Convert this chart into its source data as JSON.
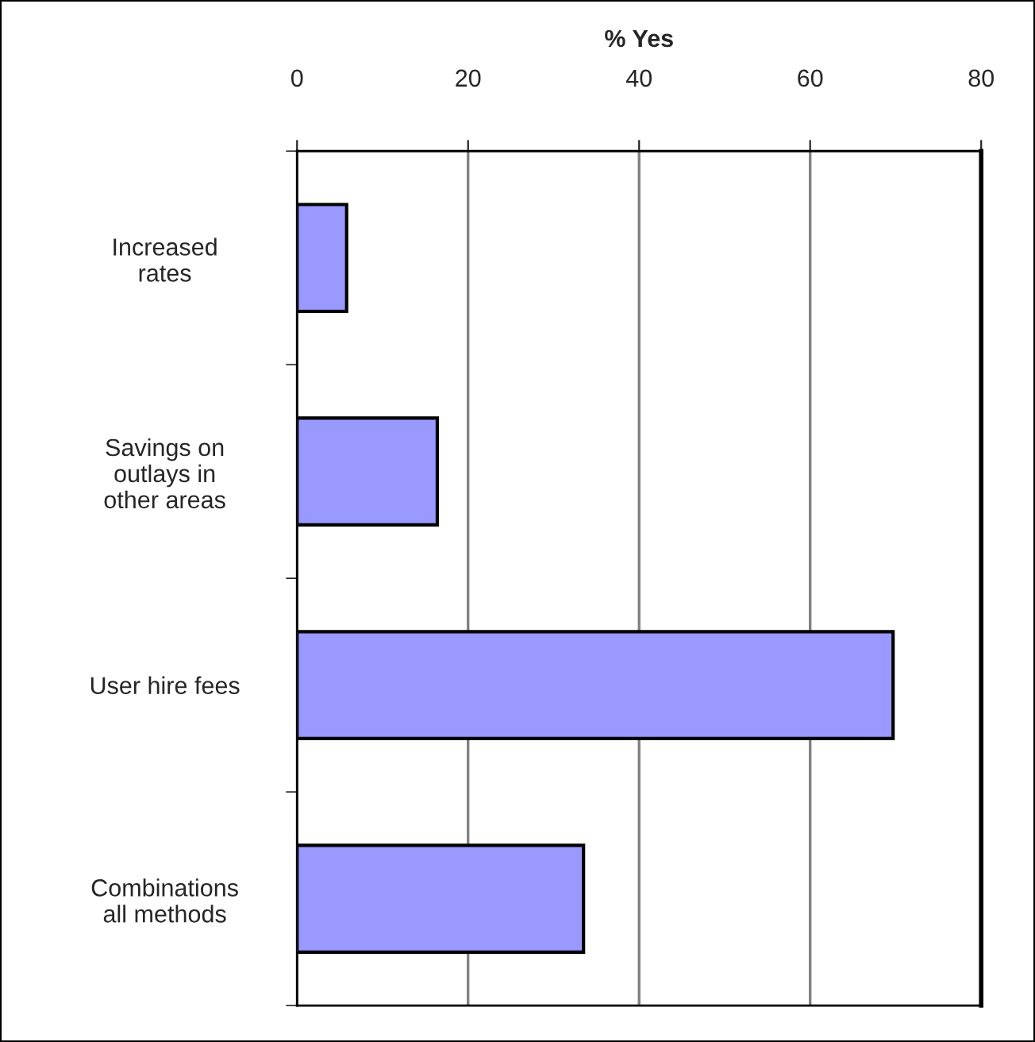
{
  "chart_data": {
    "type": "bar",
    "orientation": "horizontal",
    "xlabel": "% Yes",
    "categories": [
      "Increased\nrates",
      "Savings on\noutlays in\nother areas",
      "User hire fees",
      "Combinations\nall methods"
    ],
    "values": [
      5.8,
      16.4,
      69.7,
      33.5
    ],
    "color": "#9999ff",
    "xlim": [
      0,
      80
    ],
    "xticks": [
      0,
      20,
      40,
      60,
      80
    ],
    "grid": "x"
  }
}
